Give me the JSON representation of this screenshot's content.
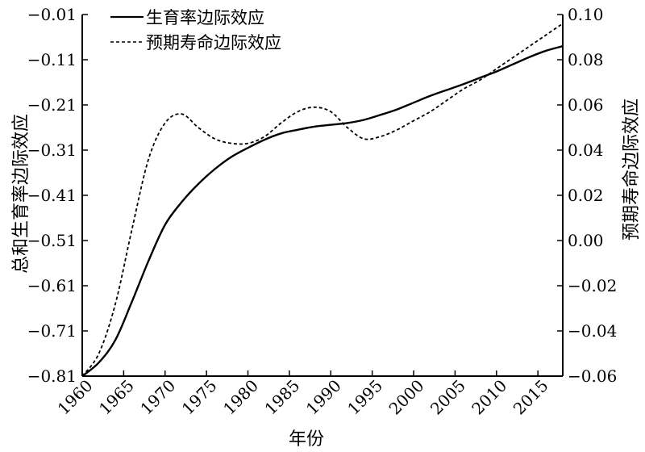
{
  "chart_data": {
    "type": "line",
    "xlabel": "年份",
    "ylabel_left": "总和生育率边际效应",
    "ylabel_right": "预期寿命边际效应",
    "x_ticks": [
      1960,
      1965,
      1970,
      1975,
      1980,
      1985,
      1990,
      1995,
      2000,
      2005,
      2010,
      2015
    ],
    "left_ticks": [
      "-0.01",
      "-0.11",
      "-0.21",
      "-0.31",
      "-0.41",
      "-0.51",
      "-0.61",
      "-0.71",
      "-0.81"
    ],
    "right_ticks": [
      "0.10",
      "0.08",
      "0.06",
      "0.04",
      "0.02",
      "0.00",
      "-0.02",
      "-0.04",
      "-0.06"
    ],
    "xlim": [
      1960,
      2018
    ],
    "ylim_left": [
      -0.81,
      -0.01
    ],
    "ylim_right": [
      -0.06,
      0.1
    ],
    "legend_position": "top-left",
    "series": [
      {
        "name": "生育率边际效应",
        "axis": "left",
        "style": "solid",
        "x": [
          1960,
          1962,
          1964,
          1966,
          1968,
          1970,
          1972,
          1974,
          1976,
          1978,
          1980,
          1982,
          1984,
          1986,
          1988,
          1990,
          1992,
          1994,
          1996,
          1998,
          2000,
          2002,
          2004,
          2006,
          2008,
          2010,
          2012,
          2014,
          2016,
          2018
        ],
        "values": [
          -0.81,
          -0.78,
          -0.73,
          -0.645,
          -0.555,
          -0.475,
          -0.425,
          -0.385,
          -0.352,
          -0.325,
          -0.305,
          -0.287,
          -0.273,
          -0.265,
          -0.258,
          -0.254,
          -0.25,
          -0.243,
          -0.232,
          -0.22,
          -0.205,
          -0.19,
          -0.177,
          -0.164,
          -0.15,
          -0.136,
          -0.12,
          -0.104,
          -0.09,
          -0.08
        ]
      },
      {
        "name": "预期寿命边际效应",
        "axis": "right",
        "style": "dashed",
        "x": [
          1960,
          1962,
          1964,
          1966,
          1968,
          1970,
          1972,
          1974,
          1976,
          1978,
          1980,
          1982,
          1984,
          1986,
          1988,
          1990,
          1992,
          1994,
          1996,
          1998,
          2000,
          2002,
          2004,
          2006,
          2008,
          2010,
          2012,
          2014,
          2016,
          2018
        ],
        "values": [
          -0.06,
          -0.05,
          -0.028,
          0.005,
          0.036,
          0.052,
          0.056,
          0.05,
          0.045,
          0.043,
          0.043,
          0.046,
          0.052,
          0.057,
          0.059,
          0.057,
          0.05,
          0.045,
          0.046,
          0.049,
          0.053,
          0.057,
          0.062,
          0.067,
          0.071,
          0.076,
          0.081,
          0.086,
          0.091,
          0.096
        ]
      }
    ]
  }
}
